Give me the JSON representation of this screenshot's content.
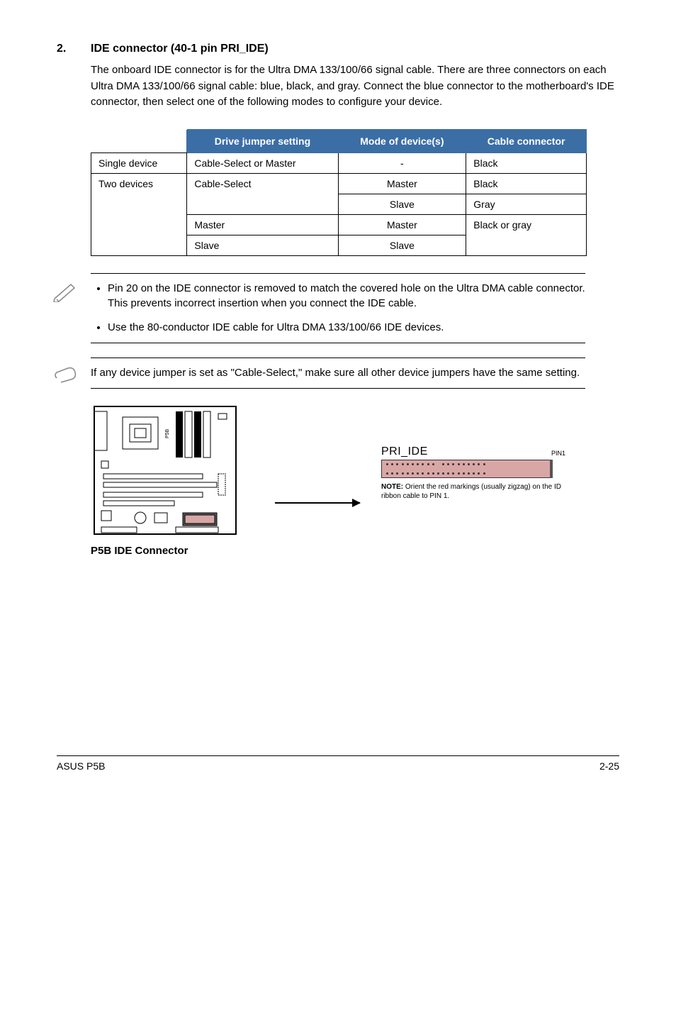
{
  "section": {
    "number": "2.",
    "title": "IDE connector (40-1 pin PRI_IDE)",
    "body": "The onboard IDE connector is for the Ultra DMA 133/100/66 signal cable. There are three connectors on each Ultra DMA 133/100/66 signal cable: blue, black, and gray. Connect the blue connector to the motherboard's IDE connector, then select one of the following modes to configure your device."
  },
  "table": {
    "headers": [
      "",
      "Drive jumper setting",
      "Mode of device(s)",
      "Cable connector"
    ],
    "single_device": "Single device",
    "two_devices": "Two devices",
    "cable_select_master": "Cable-Select or Master",
    "cable_select": "Cable-Select",
    "master": "Master",
    "slave": "Slave",
    "black": "Black",
    "gray": "Gray",
    "black_or_gray": "Black or gray",
    "dash": "-",
    "header_bg": "#3b6ea5"
  },
  "note1": {
    "items": [
      "Pin 20 on the IDE connector is removed to match the covered hole on the Ultra DMA cable connector. This prevents incorrect insertion when you connect the IDE cable.",
      "Use the 80-conductor IDE cable for Ultra DMA 133/100/66 IDE devices."
    ]
  },
  "note2": {
    "text": "If any device jumper is set as \"Cable-Select,\" make sure all other device jumpers have the same setting."
  },
  "diagram": {
    "pri_ide": "PRI_IDE",
    "pin1": "PIN1",
    "note_bold": "NOTE:",
    "note_rest": " Orient the red markings (usually zigzag) on the ID ribbon cable to PIN 1.",
    "caption": "P5B IDE Connector",
    "connector_color": "#d9a6a6",
    "pins_per_row": 20,
    "missing_pin_top_index": 10
  },
  "footer": {
    "left": "ASUS P5B",
    "right": "2-25"
  }
}
